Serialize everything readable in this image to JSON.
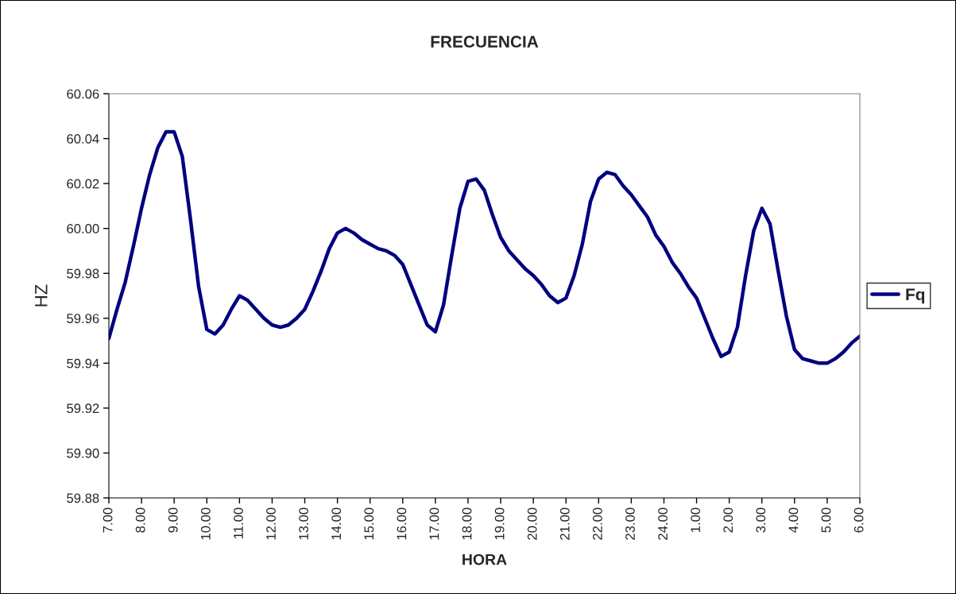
{
  "chart_data": {
    "type": "line",
    "title": "FRECUENCIA",
    "xlabel": "HORA",
    "ylabel": "HZ",
    "categories": [
      "7.00",
      null,
      null,
      null,
      "8.00",
      null,
      null,
      null,
      "9.00",
      null,
      null,
      null,
      "10.00",
      null,
      null,
      null,
      "11.00",
      null,
      null,
      null,
      "12.00",
      null,
      null,
      null,
      "13.00",
      null,
      null,
      null,
      "14.00",
      null,
      null,
      null,
      "15.00",
      null,
      null,
      null,
      "16.00",
      null,
      null,
      null,
      "17.00",
      null,
      null,
      null,
      "18.00",
      null,
      null,
      null,
      "19.00",
      null,
      null,
      null,
      "20.00",
      null,
      null,
      null,
      "21.00",
      null,
      null,
      null,
      "22.00",
      null,
      null,
      null,
      "23.00",
      null,
      null,
      null,
      "24.00",
      null,
      null,
      null,
      "1.00",
      null,
      null,
      null,
      "2.00",
      null,
      null,
      null,
      "3.00",
      null,
      null,
      null,
      "4.00",
      null,
      null,
      null,
      "5.00",
      null,
      null,
      null,
      "6.00"
    ],
    "ylim": [
      59.88,
      60.06
    ],
    "yticks": [
      {
        "value": 59.88,
        "label": "59.88"
      },
      {
        "value": 59.9,
        "label": "59.90"
      },
      {
        "value": 59.92,
        "label": "59.92"
      },
      {
        "value": 59.94,
        "label": "59.94"
      },
      {
        "value": 59.96,
        "label": "59.96"
      },
      {
        "value": 59.98,
        "label": "59.98"
      },
      {
        "value": 60.0,
        "label": "60.00"
      },
      {
        "value": 60.02,
        "label": "60.02"
      },
      {
        "value": 60.04,
        "label": "60.04"
      },
      {
        "value": 60.06,
        "label": "60.06"
      }
    ],
    "grid": false,
    "legend": "right",
    "marker": "none",
    "line_style": "solid",
    "series": [
      {
        "name": "Fq",
        "color": "#000080",
        "values": [
          59.951,
          59.964,
          59.976,
          59.992,
          60.009,
          60.024,
          60.036,
          60.043,
          60.043,
          60.032,
          60.004,
          59.974,
          59.955,
          59.953,
          59.957,
          59.964,
          59.97,
          59.968,
          59.964,
          59.96,
          59.957,
          59.956,
          59.957,
          59.96,
          59.964,
          59.972,
          59.981,
          59.991,
          59.998,
          60.0,
          59.998,
          59.995,
          59.993,
          59.991,
          59.99,
          59.988,
          59.984,
          59.975,
          59.966,
          59.957,
          59.954,
          59.966,
          59.988,
          60.009,
          60.021,
          60.022,
          60.017,
          60.006,
          59.996,
          59.99,
          59.986,
          59.982,
          59.979,
          59.975,
          59.97,
          59.967,
          59.969,
          59.979,
          59.993,
          60.012,
          60.022,
          60.025,
          60.024,
          60.019,
          60.015,
          60.01,
          60.005,
          59.997,
          59.992,
          59.985,
          59.98,
          59.974,
          59.969,
          59.96,
          59.951,
          59.943,
          59.945,
          59.956,
          59.979,
          59.999,
          60.009,
          60.002,
          59.981,
          59.961,
          59.946,
          59.942,
          59.941,
          59.94,
          59.94,
          59.942,
          59.945,
          59.949,
          59.952
        ]
      }
    ]
  }
}
